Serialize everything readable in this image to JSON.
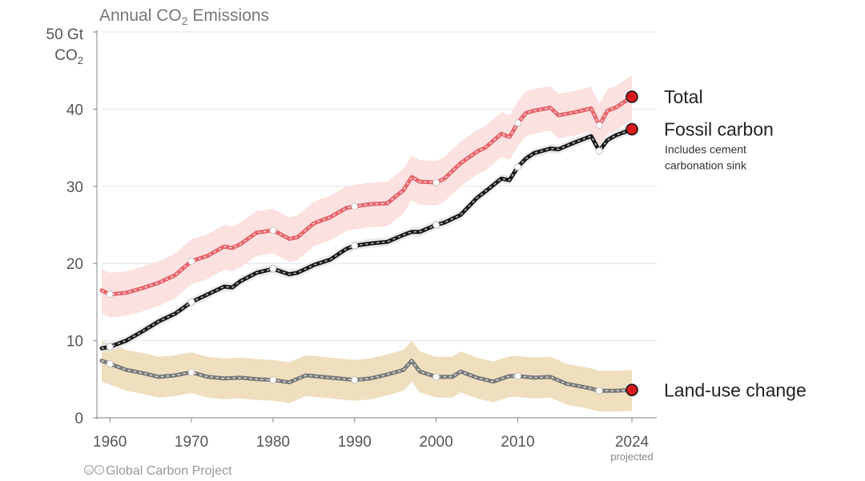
{
  "chart_data": {
    "type": "line",
    "title_parts": [
      "Annual CO",
      "2",
      " Emissions"
    ],
    "y_unit_top": "50 Gt",
    "y_unit_bottom_parts": [
      "CO",
      "2"
    ],
    "ylim": [
      0,
      50
    ],
    "yticks": [
      0,
      10,
      20,
      30,
      40
    ],
    "xlim": [
      1959,
      2024
    ],
    "xtick_values": [
      1960,
      1970,
      1980,
      1990,
      2000,
      2010,
      2024
    ],
    "xtick_labels": [
      "1960",
      "1970",
      "1980",
      "1990",
      "2000",
      "2010",
      "2024"
    ],
    "xtick_sublabel": "projected",
    "grid": true,
    "series": [
      {
        "name": "Total",
        "color": "#e5636a",
        "band_color": "#fcdcdc",
        "x": [
          1959,
          1960,
          1962,
          1964,
          1966,
          1968,
          1970,
          1972,
          1974,
          1975,
          1976,
          1978,
          1980,
          1982,
          1983,
          1985,
          1987,
          1989,
          1990,
          1992,
          1994,
          1996,
          1997,
          1998,
          2000,
          2001,
          2003,
          2005,
          2006,
          2008,
          2009,
          2010,
          2011,
          2012,
          2014,
          2015,
          2017,
          2019,
          2020,
          2021,
          2022,
          2024
        ],
        "y": [
          16.5,
          16.0,
          16.2,
          16.8,
          17.5,
          18.5,
          20.3,
          21.0,
          22.2,
          22.0,
          22.5,
          24.0,
          24.3,
          23.2,
          23.4,
          25.2,
          26.0,
          27.2,
          27.4,
          27.7,
          27.8,
          29.5,
          31.2,
          30.6,
          30.5,
          31.0,
          33.0,
          34.5,
          35.0,
          36.8,
          36.4,
          38.2,
          39.5,
          39.8,
          40.2,
          39.2,
          39.6,
          40.1,
          37.9,
          39.8,
          40.2,
          41.6
        ],
        "band_upper_offset": 2.8,
        "band_lower_offset": 3.0,
        "highlight_x": [
          1960,
          1970,
          1980,
          1990,
          2000,
          2010,
          2020
        ],
        "end_label": "Total"
      },
      {
        "name": "Fossil carbon",
        "color": "#1a1a1a",
        "band_color": "#e6e6e6",
        "x": [
          1959,
          1960,
          1962,
          1964,
          1966,
          1968,
          1970,
          1972,
          1974,
          1975,
          1976,
          1978,
          1980,
          1982,
          1983,
          1985,
          1987,
          1989,
          1990,
          1992,
          1994,
          1996,
          1997,
          1998,
          2000,
          2001,
          2003,
          2005,
          2006,
          2008,
          2009,
          2010,
          2011,
          2012,
          2014,
          2015,
          2017,
          2019,
          2020,
          2021,
          2022,
          2024
        ],
        "y": [
          9.0,
          9.2,
          10.0,
          11.2,
          12.5,
          13.5,
          15.0,
          16.0,
          17.0,
          16.9,
          17.7,
          18.8,
          19.3,
          18.6,
          18.8,
          19.8,
          20.5,
          21.9,
          22.3,
          22.6,
          22.8,
          23.7,
          24.1,
          24.1,
          25.0,
          25.3,
          26.3,
          28.5,
          29.3,
          31.0,
          30.8,
          32.5,
          33.6,
          34.3,
          34.9,
          34.8,
          35.7,
          36.5,
          34.6,
          36.0,
          36.6,
          37.4
        ],
        "band_upper_offset": 0.6,
        "band_lower_offset": 0.6,
        "highlight_x": [
          1960,
          1970,
          1980,
          1990,
          2000,
          2010,
          2020
        ],
        "end_label": "Fossil carbon",
        "end_note_lines": [
          "Includes cement",
          "carbonation sink"
        ]
      },
      {
        "name": "Land-use change",
        "color": "#7a7a7a",
        "band_color": "#ecd9b3",
        "x": [
          1959,
          1960,
          1962,
          1964,
          1966,
          1968,
          1970,
          1972,
          1974,
          1976,
          1978,
          1980,
          1982,
          1984,
          1986,
          1988,
          1990,
          1992,
          1994,
          1996,
          1997,
          1998,
          2000,
          2002,
          2003,
          2005,
          2007,
          2009,
          2010,
          2012,
          2014,
          2016,
          2018,
          2019,
          2020,
          2022,
          2024
        ],
        "y": [
          7.4,
          7.0,
          6.2,
          5.8,
          5.3,
          5.5,
          5.9,
          5.3,
          5.1,
          5.2,
          5.0,
          4.9,
          4.6,
          5.5,
          5.3,
          5.1,
          4.9,
          5.1,
          5.6,
          6.2,
          7.4,
          6.0,
          5.3,
          5.3,
          6.0,
          5.2,
          4.7,
          5.4,
          5.4,
          5.2,
          5.3,
          4.4,
          4.0,
          3.8,
          3.5,
          3.5,
          3.6
        ],
        "band_upper_offset": 2.6,
        "band_lower_offset": 2.7,
        "highlight_x": [
          1960,
          1970,
          1980,
          1990,
          2000,
          2010,
          2020
        ],
        "end_label": "Land-use change"
      }
    ],
    "credit": "Global Carbon Project"
  }
}
